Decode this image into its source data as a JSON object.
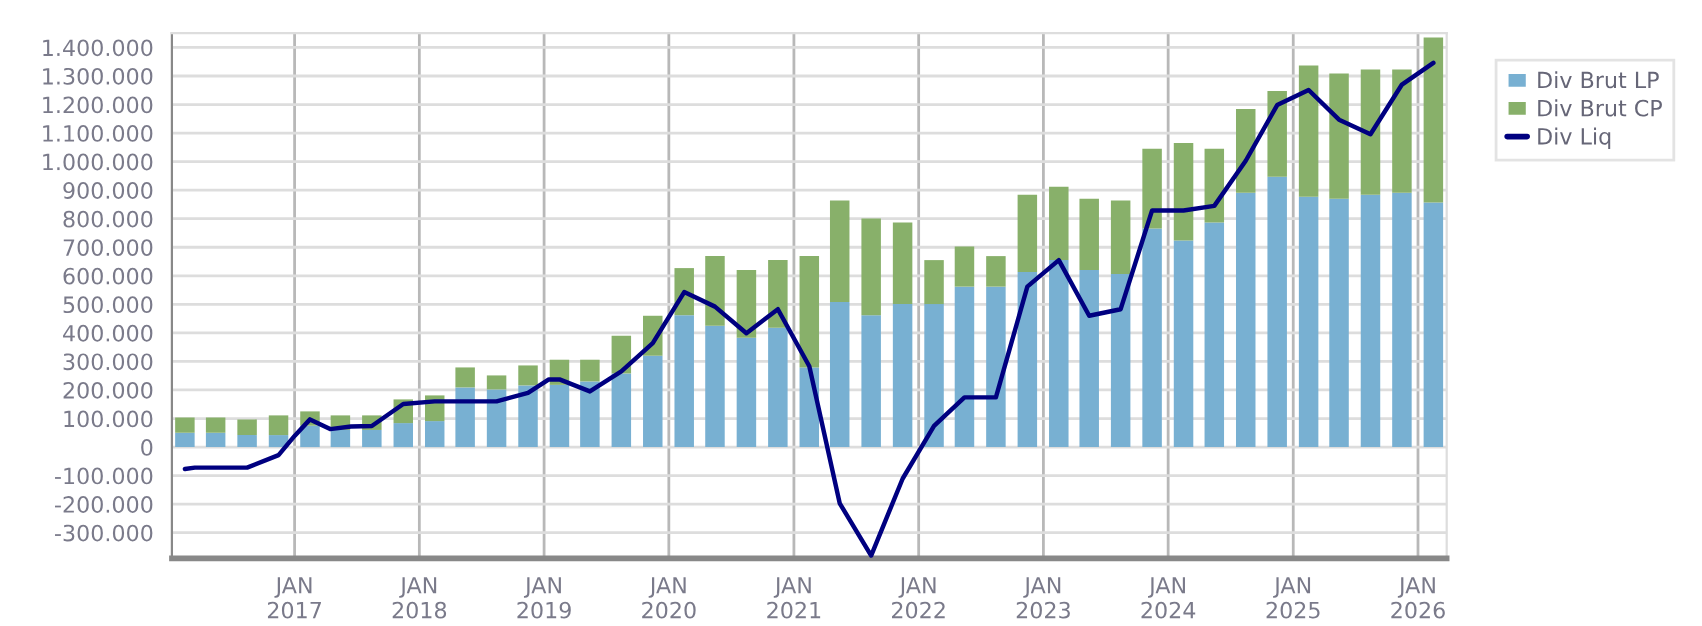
{
  "chart_data": {
    "type": "bar",
    "stacked": true,
    "x": [
      "2016-02-15",
      "2016-05-15",
      "2016-08-15",
      "2016-11-15",
      "2017-02-15",
      "2017-05-15",
      "2017-08-15",
      "2017-11-15",
      "2018-02-15",
      "2018-05-15",
      "2018-08-15",
      "2018-11-15",
      "2019-02-15",
      "2019-05-15",
      "2019-08-15",
      "2019-11-15",
      "2020-02-15",
      "2020-05-15",
      "2020-08-15",
      "2020-11-15",
      "2021-02-15",
      "2021-05-15",
      "2021-08-15",
      "2021-11-15",
      "2022-02-15",
      "2022-05-15",
      "2022-08-15",
      "2022-11-15",
      "2023-02-15",
      "2023-05-15",
      "2023-08-15",
      "2023-11-15",
      "2024-02-15",
      "2024-05-15",
      "2024-08-15",
      "2024-11-15",
      "2025-02-15",
      "2025-05-15",
      "2025-08-15",
      "2025-11-15",
      "2026-02-15"
    ],
    "series": [
      {
        "name": "Div Brut LP",
        "color": "#78b0d2",
        "values": [
          50000,
          50000,
          42000,
          42000,
          75000,
          60000,
          60000,
          84000,
          91000,
          209000,
          202000,
          216000,
          218000,
          230000,
          258000,
          320000,
          462000,
          425000,
          383000,
          418000,
          279000,
          508000,
          462000,
          501000,
          501000,
          562000,
          562000,
          613000,
          655000,
          620000,
          606000,
          766000,
          724000,
          787000,
          891000,
          947000,
          877000,
          870000,
          884000,
          891000,
          857000
        ]
      },
      {
        "name": "Div Brut CP",
        "color": "#88b06a",
        "values": [
          54000,
          54000,
          55000,
          69000,
          50000,
          51000,
          51000,
          83000,
          90000,
          70000,
          49000,
          70000,
          88000,
          76000,
          132000,
          140000,
          165000,
          244000,
          237000,
          237000,
          390000,
          356000,
          339000,
          286000,
          154000,
          141000,
          107000,
          271000,
          257000,
          250000,
          258000,
          279000,
          341000,
          258000,
          293000,
          300000,
          460000,
          439000,
          439000,
          432000,
          578000
        ]
      },
      {
        "name": "Div Liq",
        "type": "line",
        "color": "#000080",
        "marker": "none",
        "line_style": "solid",
        "x": [
          "2016-02-15",
          "2016-03-15",
          "2016-08-15",
          "2016-11-15",
          "2017-01-01",
          "2017-02-15",
          "2017-04-15",
          "2017-06-15",
          "2017-08-15",
          "2017-11-15",
          "2018-02-15",
          "2018-08-15",
          "2018-11-15",
          "2019-01-15",
          "2019-02-15",
          "2019-05-15",
          "2019-08-15",
          "2019-11-15",
          "2020-02-15",
          "2020-05-15",
          "2020-08-15",
          "2020-11-15",
          "2021-02-15",
          "2021-05-15",
          "2021-08-15",
          "2021-11-15",
          "2022-02-15",
          "2022-05-15",
          "2022-08-15",
          "2022-11-15",
          "2023-02-15",
          "2023-05-15",
          "2023-08-15",
          "2023-11-15",
          "2024-02-15",
          "2024-05-15",
          "2024-08-15",
          "2024-11-15",
          "2025-02-15",
          "2025-05-15",
          "2025-08-15",
          "2025-11-15",
          "2026-02-15"
        ],
        "values": [
          -77000,
          -72000,
          -72000,
          -28000,
          39000,
          97000,
          63000,
          72000,
          74000,
          151000,
          160000,
          160000,
          190000,
          237000,
          237000,
          195000,
          265000,
          364000,
          543000,
          492000,
          399000,
          483000,
          283000,
          -197000,
          -380000,
          -111000,
          74000,
          174000,
          174000,
          562000,
          655000,
          460000,
          483000,
          829000,
          829000,
          845000,
          1003000,
          1198000,
          1251000,
          1147000,
          1096000,
          1270000,
          1346000
        ]
      }
    ],
    "xlim": [
      "2016-01-08",
      "2026-03-26"
    ],
    "xticks": [
      {
        "value": "2017-01-01",
        "label": "JAN\n2017"
      },
      {
        "value": "2018-01-01",
        "label": "JAN\n2018"
      },
      {
        "value": "2019-01-01",
        "label": "JAN\n2019"
      },
      {
        "value": "2020-01-01",
        "label": "JAN\n2020"
      },
      {
        "value": "2021-01-01",
        "label": "JAN\n2021"
      },
      {
        "value": "2022-01-01",
        "label": "JAN\n2022"
      },
      {
        "value": "2023-01-01",
        "label": "JAN\n2023"
      },
      {
        "value": "2024-01-01",
        "label": "JAN\n2024"
      },
      {
        "value": "2025-01-01",
        "label": "JAN\n2025"
      },
      {
        "value": "2026-01-01",
        "label": "JAN\n2026"
      }
    ],
    "ylim": [
      -390000,
      1450000
    ],
    "yticks": [
      {
        "value": -300000,
        "label": "-300.000"
      },
      {
        "value": -200000,
        "label": "-200.000"
      },
      {
        "value": -100000,
        "label": "-100.000"
      },
      0,
      {
        "value": 100000,
        "label": "100.000"
      },
      {
        "value": 200000,
        "label": "200.000"
      },
      {
        "value": 300000,
        "label": "300.000"
      },
      {
        "value": 400000,
        "label": "400.000"
      },
      {
        "value": 500000,
        "label": "500.000"
      },
      {
        "value": 600000,
        "label": "600.000"
      },
      {
        "value": 700000,
        "label": "700.000"
      },
      {
        "value": 800000,
        "label": "800.000"
      },
      {
        "value": 900000,
        "label": "900.000"
      },
      {
        "value": 1000000,
        "label": "1.000.000"
      },
      {
        "value": 1100000,
        "label": "1.100.000"
      },
      {
        "value": 1200000,
        "label": "1.200.000"
      },
      {
        "value": 1300000,
        "label": "1.300.000"
      },
      {
        "value": 1400000,
        "label": "1.400.000"
      }
    ],
    "grid": true,
    "legend": "right"
  }
}
